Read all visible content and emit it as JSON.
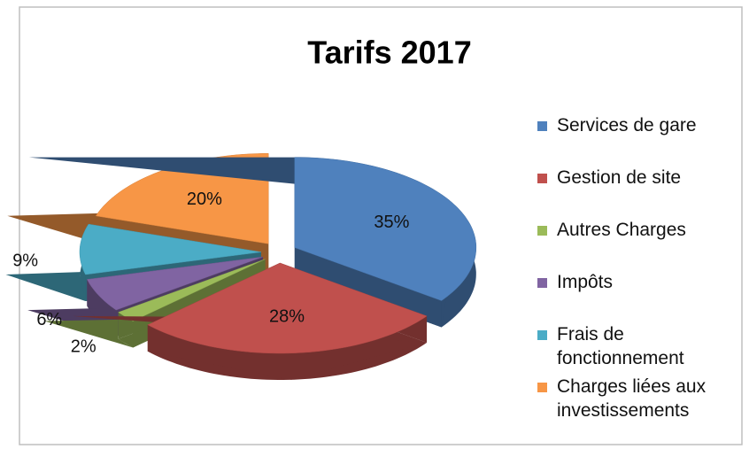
{
  "chart_data": {
    "type": "pie",
    "title": "Tarifs 2017",
    "categories": [
      "Services de gare",
      "Gestion de site",
      "Autres Charges",
      "Impôts",
      "Frais de fonctionnement",
      "Charges liées aux investissements"
    ],
    "values": [
      35,
      28,
      2,
      6,
      9,
      20
    ],
    "value_labels": [
      "35%",
      "28%",
      "2%",
      "6%",
      "9%",
      "20%"
    ],
    "colors": [
      "#4f81bd",
      "#c0504d",
      "#9bbb59",
      "#8064a2",
      "#4bacc6",
      "#f79646"
    ],
    "legend": "right"
  }
}
